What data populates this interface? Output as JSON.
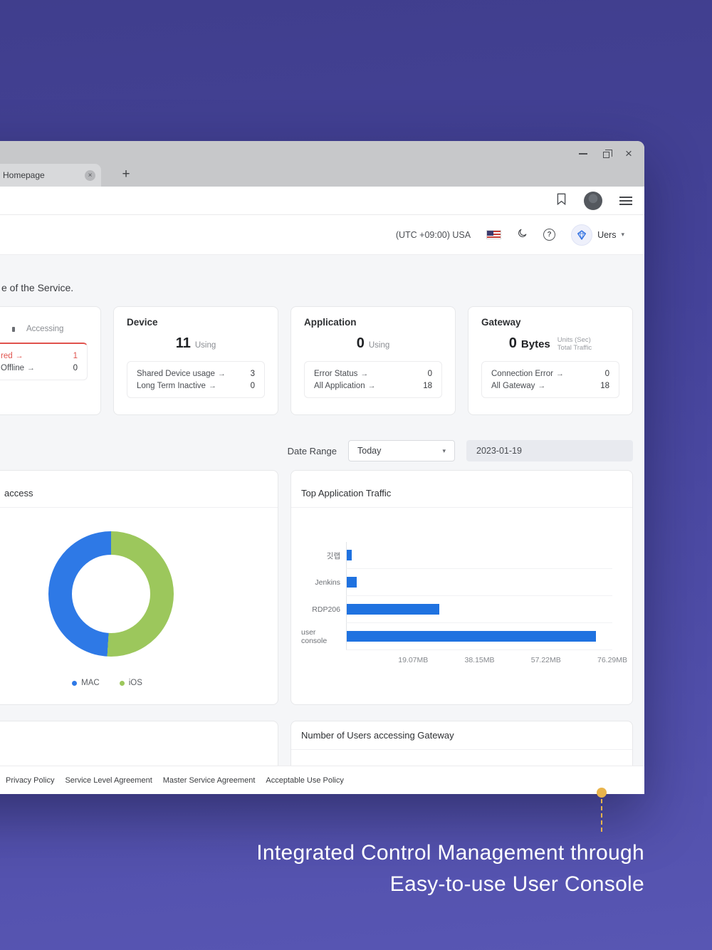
{
  "icons": {
    "arrow_right": "→",
    "chevron_down": "▾",
    "close": "×",
    "plus": "+",
    "help": "?"
  },
  "colors": {
    "accent_blue": "#1f72e0",
    "donut_blue": "#2e79e6",
    "donut_green": "#9cc75c",
    "alert_red": "#e0524c",
    "marker_yellow": "#e9b44c"
  },
  "window": {
    "tab_title": "Homepage"
  },
  "header": {
    "timezone": "(UTC +09:00) USA",
    "user_name": "Uers"
  },
  "intro_text": "e of the Service.",
  "stat_cards": {
    "user": {
      "metric_label": "Accessing",
      "rows": [
        {
          "label": "red",
          "value": "1"
        },
        {
          "label": "Offline",
          "value": "0"
        }
      ]
    },
    "device": {
      "title": "Device",
      "metric_value": "11",
      "metric_label": "Using",
      "rows": [
        {
          "label": "Shared Device usage",
          "value": "3"
        },
        {
          "label": "Long Term Inactive",
          "value": "0"
        }
      ]
    },
    "application": {
      "title": "Application",
      "metric_value": "0",
      "metric_label": "Using",
      "rows": [
        {
          "label": "Error Status",
          "value": "0"
        },
        {
          "label": "All Application",
          "value": "18"
        }
      ]
    },
    "gateway": {
      "title": "Gateway",
      "metric_value": "0",
      "metric_unit": "Bytes",
      "metric_sub1": "Units (Sec)",
      "metric_sub2": "Total Traffic",
      "rows": [
        {
          "label": "Connection Error",
          "value": "0"
        },
        {
          "label": "All Gateway",
          "value": "18"
        }
      ]
    }
  },
  "filters": {
    "date_range_label": "Date Range",
    "range_value": "Today",
    "date_value": "2023-01-19"
  },
  "charts": {
    "donut": {
      "title": "access"
    },
    "traffic": {
      "title": "Top Application Traffic"
    },
    "gateway_users": {
      "title": "Number of Users accessing Gateway"
    }
  },
  "chart_data": [
    {
      "type": "pie",
      "style": "donut",
      "title": "access",
      "labels": [
        "MAC",
        "iOS"
      ],
      "values": [
        49,
        51
      ],
      "colors": [
        "#2e79e6",
        "#9cc75c"
      ],
      "legend_position": "bottom"
    },
    {
      "type": "bar",
      "orientation": "horizontal",
      "title": "Top Application Traffic",
      "categories": [
        "깃랩",
        "Jenkins",
        "RDP206",
        "user console"
      ],
      "values_mb": [
        1.5,
        2.8,
        26.5,
        71.5
      ],
      "xticks": [
        "19.07MB",
        "38.15MB",
        "57.22MB",
        "76.29MB"
      ],
      "xlim_mb": [
        0,
        76.29
      ],
      "color": "#1f72e0",
      "grid": "row-separators"
    }
  ],
  "footer": {
    "links": [
      "Privacy Policy",
      "Service Level Agreement",
      "Master Service Agreement",
      "Acceptable Use Policy"
    ]
  },
  "caption": {
    "line1": "Integrated Control Management through",
    "line2": "Easy-to-use User Console"
  }
}
